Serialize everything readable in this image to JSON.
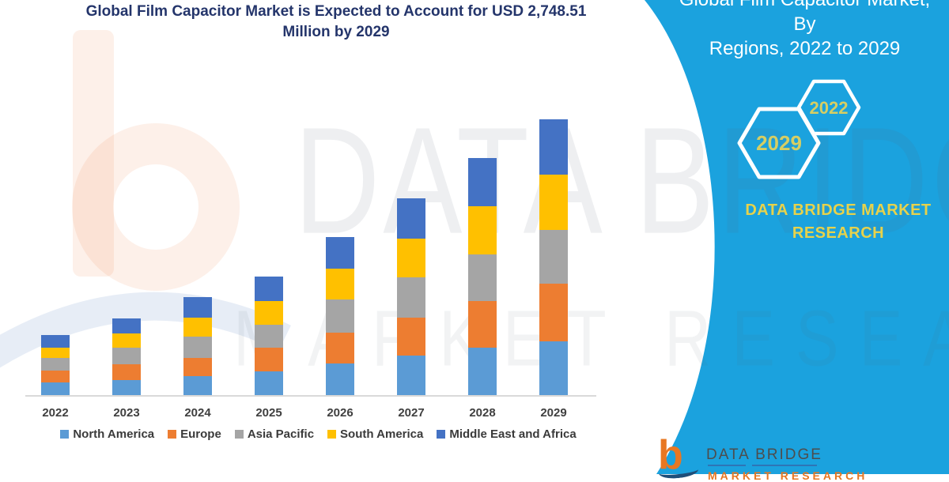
{
  "header": {
    "title_lines": [
      "Global Film Capacitor Market is Expected to Account for USD 2,748.51",
      "Million by 2029"
    ]
  },
  "sidebar": {
    "title_lines": [
      "Global Film Capacitor Market, By",
      "Regions, 2022 to 2029"
    ],
    "hexagon_years": [
      "2029",
      "2022"
    ],
    "brand": "DATA BRIDGE MARKET RESEARCH",
    "logo": {
      "glyph": "b",
      "name": "DATA BRIDGE",
      "subtitle": "MARKET RESEARCH"
    }
  },
  "watermark": {
    "line1": "DATA BRIDGE",
    "line2": "MARKET RESEARCH",
    "logo_glyph": "b"
  },
  "colors": {
    "panel_cyan": "#1BA2DE",
    "title_navy": "#24356B",
    "hexagon_year_text": "#D6CE63",
    "brand_yellow": "#E7D24B",
    "axis_line": "#D9D9D9",
    "axis_label_text": "#3F3F3F",
    "legend_text": "#3A3A3A",
    "logo_orange": "#E87722",
    "logo_text_gray": "#4D4D4D",
    "logo_underline_blue": "#2E75B6",
    "watermark_salmon": "rgba(240,130,70,0.12)"
  },
  "chart_data": {
    "type": "bar",
    "stacked": true,
    "title": "Global Film Capacitor Market is Expected to Account for USD 2,748.51 Million by 2029",
    "xlabel": "",
    "ylabel": "",
    "units": "relative height units (no value axis shown in figure)",
    "categories": [
      "2022",
      "2023",
      "2024",
      "2025",
      "2026",
      "2027",
      "2028",
      "2029"
    ],
    "series": [
      {
        "name": "North America",
        "color": "#5B9BD5",
        "values": [
          16,
          19,
          24,
          30,
          40,
          50,
          60,
          68
        ]
      },
      {
        "name": "Europe",
        "color": "#ED7D31",
        "values": [
          15,
          20,
          23,
          30,
          39,
          48,
          59,
          73
        ]
      },
      {
        "name": "Asia Pacific",
        "color": "#A5A5A5",
        "values": [
          16,
          21,
          27,
          29,
          42,
          51,
          59,
          68
        ]
      },
      {
        "name": "South America",
        "color": "#FFC000",
        "values": [
          13,
          18,
          24,
          30,
          39,
          49,
          61,
          70
        ]
      },
      {
        "name": "Middle East and Africa",
        "color": "#4472C4",
        "values": [
          16,
          19,
          26,
          31,
          40,
          51,
          61,
          70
        ]
      }
    ],
    "relative_totals": [
      76,
      97,
      124,
      150,
      200,
      249,
      300,
      349
    ],
    "annotations": [
      "Only the 2029 total is quantified in the headline: USD 2,748.51 Million"
    ],
    "legend_position": "bottom",
    "grid": false,
    "value_axis_visible": false
  }
}
